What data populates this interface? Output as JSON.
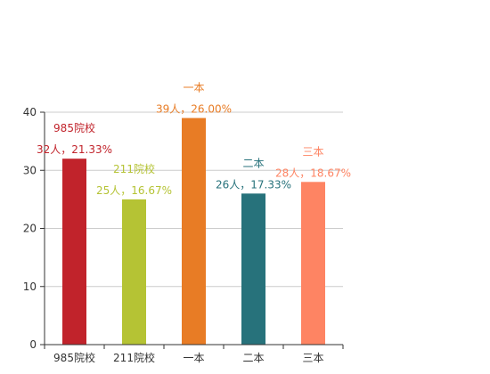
{
  "chart_data": {
    "type": "bar",
    "categories": [
      "985院校",
      "211院校",
      "一本",
      "二本",
      "三本"
    ],
    "values": [
      32,
      25,
      39,
      26,
      28
    ],
    "labels": [
      {
        "name": "985院校",
        "detail": "32人，21.33%"
      },
      {
        "name": "211院校",
        "detail": "25人，16.67%"
      },
      {
        "name": "一本",
        "detail": "39人，26.00%"
      },
      {
        "name": "二本",
        "detail": "26人，17.33%"
      },
      {
        "name": "三本",
        "detail": "28人，18.67%"
      }
    ],
    "colors": [
      "#c1232b",
      "#b5c334",
      "#e87c25",
      "#27727b",
      "#fe8463"
    ],
    "yticks": [
      "0",
      "10",
      "20",
      "30",
      "40"
    ],
    "ylim": [
      0,
      40
    ],
    "grid": true,
    "title": "",
    "xlabel": "",
    "ylabel": ""
  }
}
